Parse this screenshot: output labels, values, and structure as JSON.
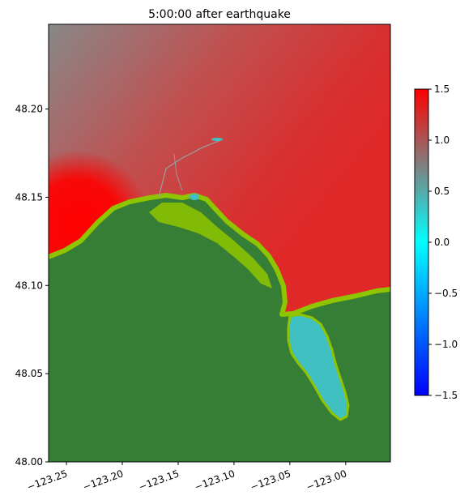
{
  "chart_data": {
    "type": "heatmap",
    "title": "5:00:00 after earthquake",
    "xlim": [
      -123.266,
      -122.96
    ],
    "ylim": [
      48.0,
      48.248
    ],
    "x_ticks": [
      -123.25,
      -123.2,
      -123.15,
      -123.1,
      -123.05,
      -123.0
    ],
    "x_tick_labels": [
      "−123.25",
      "−123.20",
      "−123.15",
      "−123.10",
      "−123.05",
      "−123.00"
    ],
    "y_ticks": [
      48.0,
      48.05,
      48.1,
      48.15,
      48.2
    ],
    "y_tick_labels": [
      "48.00",
      "48.05",
      "48.10",
      "48.15",
      "48.20"
    ],
    "colorbar": {
      "range": [
        -1.5,
        1.5
      ],
      "ticks": [
        -1.5,
        -1.0,
        -0.5,
        0.0,
        0.5,
        1.0,
        1.5
      ],
      "tick_labels": [
        "−1.5",
        "−1.0",
        "−0.5",
        "0.0",
        "0.5",
        "1.0",
        "1.5"
      ],
      "colors": [
        "#0000ff",
        "#00ffff",
        "#808080",
        "#ff0000"
      ]
    },
    "surface_colors": {
      "land": "#367e36",
      "shallow": "#8fc400",
      "inner_bay": "#40c0c0",
      "sea_high": "#ff0000",
      "sea_mid": "#d83030",
      "sea_low": "#888888"
    }
  }
}
